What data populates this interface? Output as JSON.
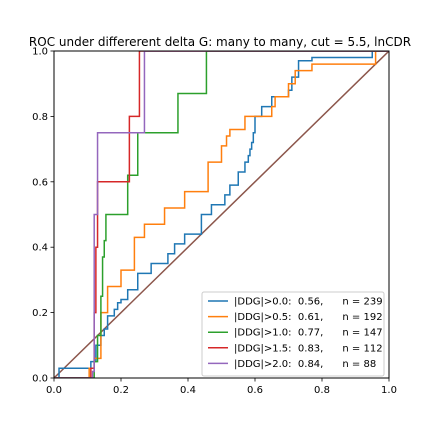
{
  "chart_data": {
    "type": "line",
    "title": "ROC under differerent delta G: many to many, cut = 5.5, lnCDR",
    "xlabel": "",
    "ylabel": "",
    "xlim": [
      0.0,
      1.0
    ],
    "ylim": [
      0.0,
      1.0
    ],
    "xticks": [
      "0.0",
      "0.2",
      "0.4",
      "0.6",
      "0.8",
      "1.0"
    ],
    "yticks": [
      "0.0",
      "0.2",
      "0.4",
      "0.6",
      "0.8",
      "1.0"
    ],
    "grid": false,
    "legend_position": "lower-right",
    "diagonal": {
      "x": [
        0,
        1
      ],
      "y": [
        0,
        1
      ],
      "color": "#8c564b"
    },
    "series": [
      {
        "name": "|DDG|>0.0:  0.56,      n = 239",
        "color": "#1f77b4",
        "x": [
          0,
          0.015,
          0.015,
          0.11,
          0.11,
          0.125,
          0.125,
          0.14,
          0.14,
          0.15,
          0.15,
          0.16,
          0.16,
          0.18,
          0.18,
          0.19,
          0.19,
          0.2,
          0.2,
          0.22,
          0.22,
          0.25,
          0.25,
          0.29,
          0.29,
          0.34,
          0.34,
          0.36,
          0.36,
          0.39,
          0.39,
          0.44,
          0.44,
          0.47,
          0.47,
          0.51,
          0.51,
          0.525,
          0.525,
          0.55,
          0.55,
          0.57,
          0.57,
          0.58,
          0.58,
          0.585,
          0.585,
          0.59,
          0.59,
          0.595,
          0.595,
          0.6,
          0.6,
          0.62,
          0.62,
          0.65,
          0.65,
          0.7,
          0.7,
          0.71,
          0.71,
          0.73,
          0.73,
          0.77,
          0.77,
          0.95,
          0.95,
          1.0
        ],
        "y": [
          0,
          0,
          0.03,
          0.03,
          0.05,
          0.05,
          0.1,
          0.1,
          0.13,
          0.13,
          0.15,
          0.15,
          0.19,
          0.19,
          0.21,
          0.21,
          0.23,
          0.23,
          0.24,
          0.24,
          0.27,
          0.27,
          0.32,
          0.32,
          0.35,
          0.35,
          0.38,
          0.38,
          0.41,
          0.41,
          0.44,
          0.44,
          0.5,
          0.5,
          0.53,
          0.53,
          0.56,
          0.56,
          0.59,
          0.59,
          0.63,
          0.63,
          0.66,
          0.66,
          0.68,
          0.68,
          0.7,
          0.7,
          0.72,
          0.72,
          0.75,
          0.75,
          0.8,
          0.8,
          0.83,
          0.83,
          0.86,
          0.86,
          0.88,
          0.88,
          0.92,
          0.92,
          0.97,
          0.97,
          0.98,
          0.98,
          1.0,
          1.0
        ]
      },
      {
        "name": "|DDG|>0.5:  0.61,      n = 192",
        "color": "#ff7f0e",
        "x": [
          0,
          0.105,
          0.105,
          0.12,
          0.12,
          0.14,
          0.14,
          0.16,
          0.16,
          0.2,
          0.2,
          0.24,
          0.24,
          0.27,
          0.27,
          0.33,
          0.33,
          0.39,
          0.39,
          0.46,
          0.46,
          0.5,
          0.5,
          0.515,
          0.515,
          0.525,
          0.525,
          0.57,
          0.57,
          0.65,
          0.65,
          0.66,
          0.66,
          0.7,
          0.7,
          0.72,
          0.72,
          0.77,
          0.77,
          0.96,
          0.96,
          1.0
        ],
        "y": [
          0,
          0,
          0.03,
          0.03,
          0.06,
          0.06,
          0.2,
          0.2,
          0.28,
          0.28,
          0.33,
          0.33,
          0.43,
          0.43,
          0.47,
          0.47,
          0.52,
          0.52,
          0.57,
          0.57,
          0.66,
          0.66,
          0.71,
          0.71,
          0.74,
          0.74,
          0.76,
          0.76,
          0.8,
          0.8,
          0.83,
          0.83,
          0.86,
          0.86,
          0.9,
          0.9,
          0.94,
          0.94,
          0.96,
          0.96,
          1.0,
          1.0
        ]
      },
      {
        "name": "|DDG|>1.0:  0.77,      n = 147",
        "color": "#2ca02c",
        "x": [
          0,
          0.12,
          0.12,
          0.13,
          0.13,
          0.14,
          0.14,
          0.145,
          0.145,
          0.15,
          0.15,
          0.155,
          0.155,
          0.22,
          0.22,
          0.25,
          0.25,
          0.37,
          0.37,
          0.455,
          0.455,
          1.0
        ],
        "y": [
          0,
          0,
          0.05,
          0.05,
          0.13,
          0.13,
          0.25,
          0.25,
          0.37,
          0.37,
          0.42,
          0.42,
          0.5,
          0.5,
          0.62,
          0.62,
          0.75,
          0.75,
          0.87,
          0.87,
          1.0,
          1.0
        ]
      },
      {
        "name": "|DDG|>1.5:  0.83,      n = 112",
        "color": "#d62728",
        "x": [
          0,
          0.11,
          0.11,
          0.12,
          0.12,
          0.125,
          0.125,
          0.13,
          0.13,
          0.225,
          0.225,
          0.255,
          0.255,
          0.275,
          0.275,
          1.0
        ],
        "y": [
          0,
          0,
          0.03,
          0.03,
          0.2,
          0.2,
          0.4,
          0.4,
          0.6,
          0.6,
          0.8,
          0.8,
          1.0,
          1.0,
          1.0,
          1.0
        ]
      },
      {
        "name": "|DDG|>2.0:  0.84,      n = 88",
        "color": "#9467bd",
        "x": [
          0,
          0.115,
          0.115,
          0.12,
          0.12,
          0.13,
          0.13,
          0.27,
          0.27,
          1.0
        ],
        "y": [
          0,
          0,
          0.02,
          0.02,
          0.5,
          0.5,
          0.75,
          0.75,
          1.0,
          1.0
        ]
      }
    ]
  }
}
